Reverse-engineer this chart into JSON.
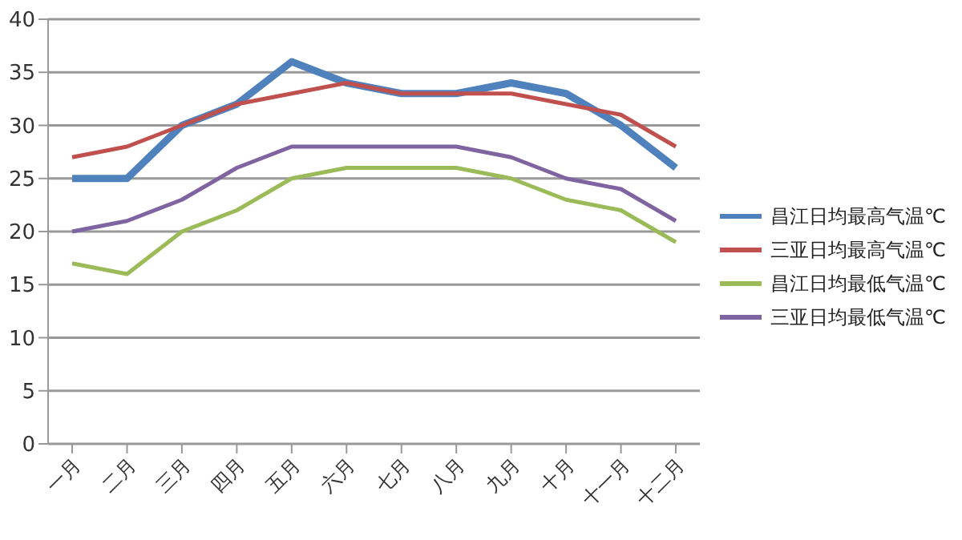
{
  "chart_data": {
    "type": "line",
    "categories": [
      "一月",
      "二月",
      "三月",
      "四月",
      "五月",
      "六月",
      "七月",
      "八月",
      "九月",
      "十月",
      "十一月",
      "十二月"
    ],
    "series": [
      {
        "name": "昌江日均最高气温℃",
        "color": "#4f81bd",
        "values": [
          25,
          25,
          30,
          32,
          36,
          34,
          33,
          33,
          34,
          33,
          30,
          26
        ]
      },
      {
        "name": "三亚日均最高气温℃",
        "color": "#c0504d",
        "values": [
          27,
          28,
          30,
          32,
          33,
          34,
          33,
          33,
          33,
          32,
          31,
          28
        ]
      },
      {
        "name": "昌江日均最低气温℃",
        "color": "#9bbb59",
        "values": [
          17,
          16,
          20,
          22,
          25,
          26,
          26,
          26,
          25,
          23,
          22,
          19
        ]
      },
      {
        "name": "三亚日均最低气温℃",
        "color": "#8064a2",
        "values": [
          20,
          21,
          23,
          26,
          28,
          28,
          28,
          28,
          27,
          25,
          24,
          21
        ]
      }
    ],
    "ylim": [
      0,
      40
    ],
    "yticks": [
      0,
      5,
      10,
      15,
      20,
      25,
      30,
      35,
      40
    ],
    "grid": "y",
    "legend": "right",
    "marker": "none",
    "line_style": "solid"
  }
}
